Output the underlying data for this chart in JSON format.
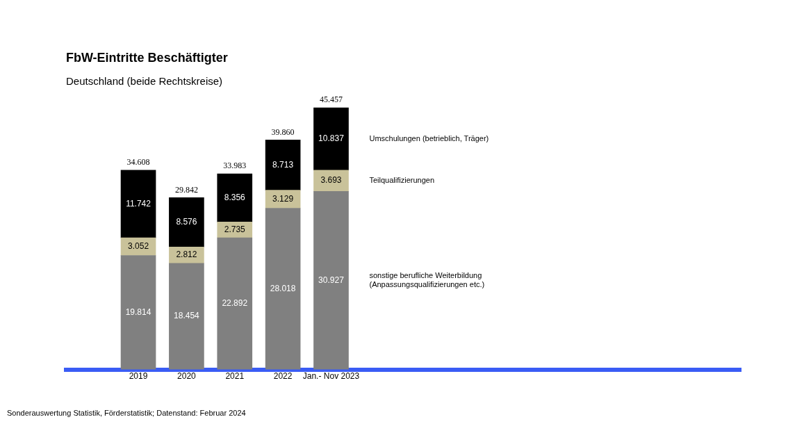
{
  "chart_data": {
    "type": "bar",
    "title": "FbW-Eintritte Beschäftigter",
    "subtitle": "Deutschland (beide Rechtskreise)",
    "stacked": true,
    "categories": [
      "2019",
      "2020",
      "2021",
      "2022",
      "Jan.- Nov 2023"
    ],
    "series": [
      {
        "name": "sonstige berufliche Weiterbildung (Anpassungsqualifizierungen etc.)",
        "color": "#808080",
        "values": [
          19814,
          18454,
          22892,
          28018,
          30927
        ],
        "value_labels": [
          "19.814",
          "18.454",
          "22.892",
          "28.018",
          "30.927"
        ]
      },
      {
        "name": "Teilqualifizierungen",
        "color": "#c9c29a",
        "values": [
          3052,
          2812,
          2735,
          3129,
          3693
        ],
        "value_labels": [
          "3.052",
          "2.812",
          "2.735",
          "3.129",
          "3.693"
        ]
      },
      {
        "name": "Umschulungen (betrieblich, Träger)",
        "color": "#000000",
        "values": [
          11742,
          8576,
          8356,
          8713,
          10837
        ],
        "value_labels": [
          "11.742",
          "8.576",
          "8.356",
          "8.713",
          "10.837"
        ]
      }
    ],
    "totals": [
      "34.608",
      "29.842",
      "33.983",
      "39.860",
      "45.457"
    ],
    "annotations": [
      "Sonderauswertung Statistik, Förderstatistik; Datenstand: Februar 2024"
    ]
  }
}
